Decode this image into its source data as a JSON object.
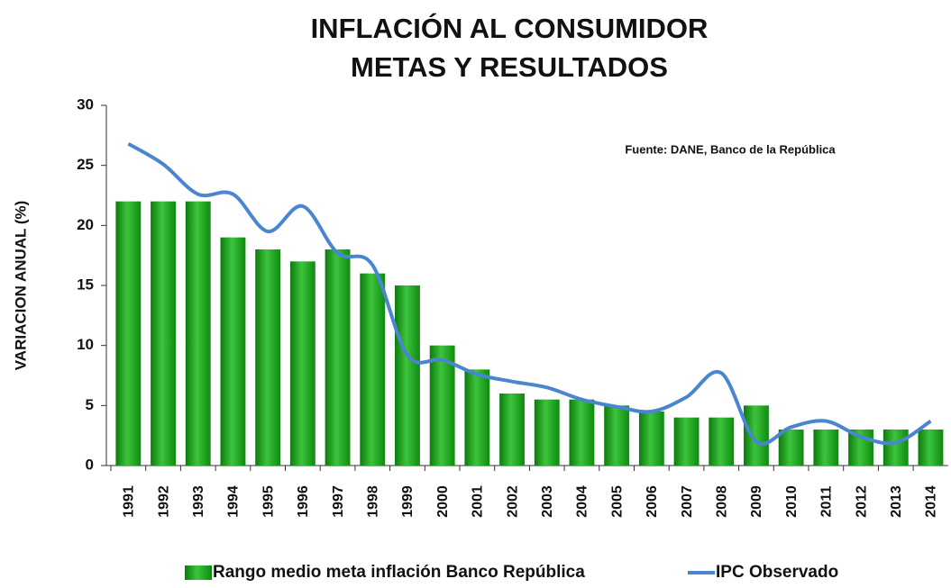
{
  "chart_data": {
    "type": "bar_line",
    "title": "INFLACIÓN AL CONSUMIDOR",
    "subtitle": "METAS Y RESULTADOS",
    "annotation": "Fuente: DANE, Banco de la República",
    "y_label": "VARIACION ANUAL (%)",
    "categories": [
      "1991",
      "1992",
      "1993",
      "1994",
      "1995",
      "1996",
      "1997",
      "1998",
      "1999",
      "2000",
      "2001",
      "2002",
      "2003",
      "2004",
      "2005",
      "2006",
      "2007",
      "2008",
      "2009",
      "2010",
      "2011",
      "2012",
      "2013",
      "2014"
    ],
    "series": [
      {
        "name": "Rango medio meta inflación Banco República",
        "type": "bar",
        "color": "#1fa51f",
        "values": [
          22,
          22,
          22,
          19,
          18,
          17,
          18,
          16,
          15,
          10,
          8,
          6,
          5.5,
          5.5,
          5,
          4.5,
          4,
          4,
          5,
          3,
          3,
          3,
          3,
          3
        ]
      },
      {
        "name": "IPC Observado",
        "type": "line",
        "color": "#4a86d0",
        "values": [
          26.8,
          25.1,
          22.6,
          22.6,
          19.5,
          21.6,
          17.7,
          16.7,
          9.2,
          8.8,
          7.6,
          7.0,
          6.5,
          5.5,
          4.9,
          4.5,
          5.7,
          7.7,
          2.0,
          3.2,
          3.7,
          2.4,
          1.9,
          3.7
        ]
      }
    ],
    "ylim": [
      0,
      30
    ],
    "yticks": [
      0,
      5,
      10,
      15,
      20,
      25,
      30
    ],
    "legend": "bottom"
  }
}
